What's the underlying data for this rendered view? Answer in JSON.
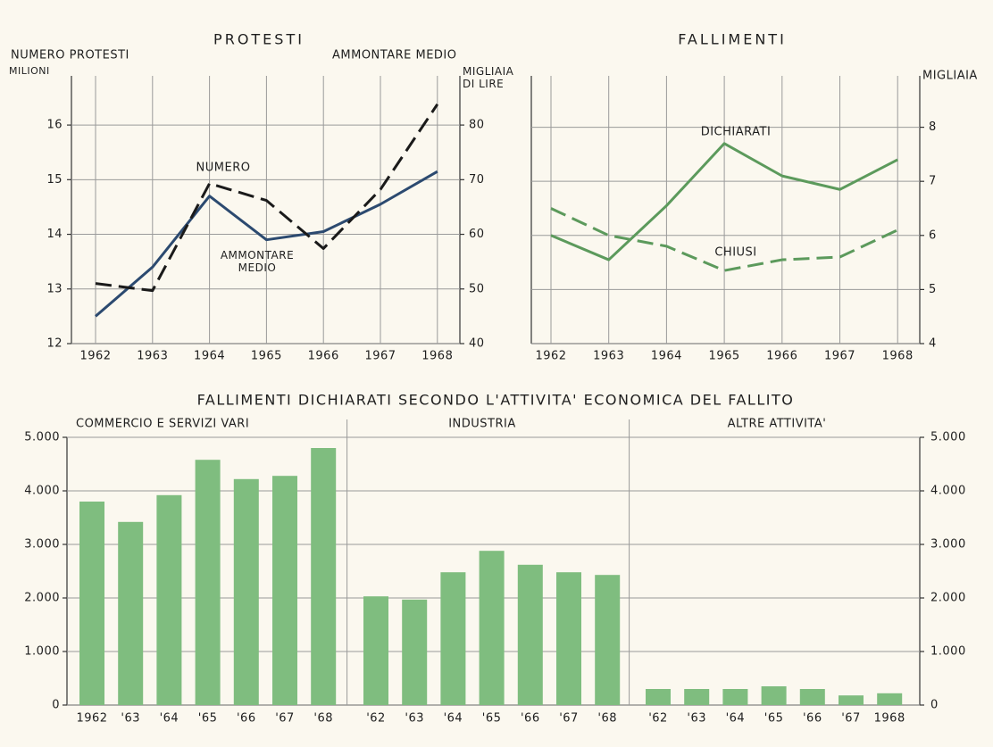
{
  "chart_data": [
    {
      "type": "line",
      "title": "PROTESTI",
      "ylabel": "NUMERO PROTESTI",
      "yunit": "MILIONI",
      "y2label": "AMMONTARE MEDIO",
      "y2unit": "MIGLIAIA DI LIRE",
      "categories": [
        "1962",
        "1963",
        "1964",
        "1965",
        "1966",
        "1967",
        "1968"
      ],
      "ylim": [
        12,
        16.9
      ],
      "yticks": [
        12,
        13,
        14,
        15,
        16
      ],
      "y2lim": [
        40,
        89
      ],
      "y2ticks": [
        40,
        50,
        60,
        70,
        80
      ],
      "grid": true,
      "series": [
        {
          "name": "NUMERO",
          "color": "#2c4a70",
          "style": "solid",
          "values": [
            12.5,
            13.4,
            14.7,
            13.9,
            14.05,
            14.55,
            15.15
          ]
        },
        {
          "name": "AMMONTARE MEDIO",
          "color": "#1a1a1a",
          "style": "dashed",
          "axis": "y2",
          "values": [
            51,
            49.7,
            69.3,
            66.2,
            57.4,
            68.2,
            83.8
          ]
        }
      ]
    },
    {
      "type": "line",
      "title": "FALLIMENTI",
      "y2label": "MIGLIAIA",
      "categories": [
        "1962",
        "1963",
        "1964",
        "1965",
        "1966",
        "1967",
        "1968"
      ],
      "y2lim": [
        4,
        8.95
      ],
      "y2ticks": [
        4,
        5,
        6,
        7,
        8
      ],
      "grid": true,
      "series": [
        {
          "name": "DICHIARATI",
          "color": "#5c9a5c",
          "style": "solid",
          "axis": "y2",
          "values": [
            6.0,
            5.55,
            6.55,
            7.7,
            7.1,
            6.85,
            7.4
          ]
        },
        {
          "name": "CHIUSI",
          "color": "#5c9a5c",
          "style": "dashed",
          "axis": "y2",
          "values": [
            6.5,
            6.0,
            5.8,
            5.35,
            5.55,
            5.6,
            6.1
          ]
        }
      ]
    },
    {
      "type": "bar",
      "title": "FALLIMENTI DICHIARATI SECONDO L'ATTIVITA' ECONOMICA DEL FALLITO",
      "color": "#7fbd7f",
      "ylim": [
        0,
        5000
      ],
      "yticks": [
        0,
        {
          "value": 1000,
          "label": "1.000"
        },
        {
          "value": 2000,
          "label": "2.000"
        },
        {
          "value": 3000,
          "label": "3.000"
        },
        {
          "value": 4000,
          "label": "4.000"
        },
        {
          "value": 5000,
          "label": "5.000"
        }
      ],
      "y2lim": [
        0,
        5000
      ],
      "y2ticks": [
        0,
        {
          "value": 1000,
          "label": "1.000"
        },
        {
          "value": 2000,
          "label": "2.000"
        },
        {
          "value": 3000,
          "label": "3.000"
        },
        {
          "value": 4000,
          "label": "4.000"
        },
        {
          "value": 5000,
          "label": "5.000"
        }
      ],
      "grid": true,
      "groups": [
        {
          "name": "COMMERCIO E SERVIZI VARI",
          "categories": [
            "1962",
            "'63",
            "'64",
            "'65",
            "'66",
            "'67",
            "'68"
          ],
          "values": [
            3800,
            3420,
            3920,
            4580,
            4220,
            4280,
            4800
          ]
        },
        {
          "name": "INDUSTRIA",
          "categories": [
            "'62",
            "'63",
            "'64",
            "'65",
            "'66",
            "'67",
            "'68"
          ],
          "values": [
            2030,
            1970,
            2480,
            2880,
            2620,
            2480,
            2430
          ]
        },
        {
          "name": "ALTRE ATTIVITA'",
          "categories": [
            "'62",
            "'63",
            "'64",
            "'65",
            "'66",
            "'67",
            "1968"
          ],
          "values": [
            300,
            300,
            300,
            350,
            300,
            180,
            220
          ]
        }
      ]
    }
  ]
}
